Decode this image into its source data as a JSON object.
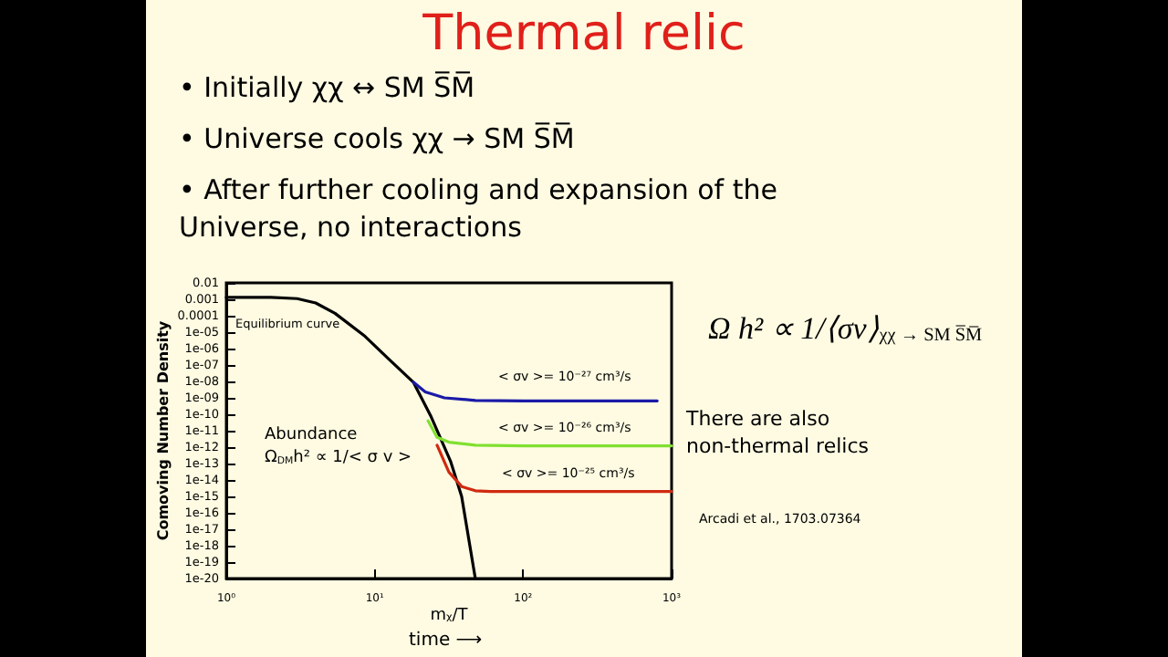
{
  "chart_data": {
    "type": "line",
    "title": "Thermal relic",
    "xlabel": "mᵪ/T",
    "ylabel": "Comoving Number Density",
    "log": "xy",
    "grid": false,
    "marker": "none",
    "line_style": "solid",
    "xlim": [
      1,
      1000
    ],
    "xticks": [
      {
        "value": 1,
        "label": "10⁰"
      },
      {
        "value": 10,
        "label": "10¹"
      },
      {
        "value": 100,
        "label": "10²"
      },
      {
        "value": 1000,
        "label": "10³"
      }
    ],
    "ylim": [
      1e-20,
      0.01
    ],
    "yticks": [
      {
        "value": 0.01,
        "label": "0.01"
      },
      {
        "value": 0.001,
        "label": "0.001"
      },
      {
        "value": 0.0001,
        "label": "0.0001"
      },
      {
        "value": 1e-05,
        "label": "1e-05"
      },
      {
        "value": 1e-06,
        "label": "1e-06"
      },
      {
        "value": 1e-07,
        "label": "1e-07"
      },
      {
        "value": 1e-08,
        "label": "1e-08"
      },
      {
        "value": 1e-09,
        "label": "1e-09"
      },
      {
        "value": 1e-10,
        "label": "1e-10"
      },
      {
        "value": 1e-11,
        "label": "1e-11"
      },
      {
        "value": 1e-12,
        "label": "1e-12"
      },
      {
        "value": 1e-13,
        "label": "1e-13"
      },
      {
        "value": 1e-14,
        "label": "1e-14"
      },
      {
        "value": 1e-15,
        "label": "1e-15"
      },
      {
        "value": 1e-16,
        "label": "1e-16"
      },
      {
        "value": 1e-17,
        "label": "1e-17"
      },
      {
        "value": 1e-18,
        "label": "1e-18"
      },
      {
        "value": 1e-19,
        "label": "1e-19"
      },
      {
        "value": 1e-20,
        "label": "1e-20"
      }
    ],
    "series": [
      {
        "color": "#000000",
        "x": [
          1,
          2,
          3,
          4,
          5.4,
          8.6,
          12.5,
          18.2,
          24,
          32.5,
          38.5,
          47.6
        ],
        "values": [
          0.0013,
          0.0013,
          0.0011,
          0.0006,
          0.00014,
          5.6e-06,
          2.2e-07,
          9e-09,
          7e-11,
          1.3e-13,
          1e-15,
          1e-20
        ]
      },
      {
        "color": "#1a1aa8",
        "x": [
          18.2,
          21.9,
          29.5,
          47.6,
          100,
          300,
          800
        ],
        "values": [
          9e-09,
          2.3e-09,
          1e-09,
          7e-10,
          6.5e-10,
          6.5e-10,
          6.5e-10
        ]
      },
      {
        "color": "#80e030",
        "x": [
          22.9,
          26.3,
          31.6,
          47.6,
          100,
          300,
          1000
        ],
        "values": [
          4e-11,
          4e-12,
          2e-12,
          1.3e-12,
          1.2e-12,
          1.2e-12,
          1.2e-12
        ]
      },
      {
        "color": "#d02a10",
        "x": [
          26.3,
          31.6,
          38.5,
          47.6,
          60,
          100,
          300,
          1000
        ],
        "values": [
          1.3e-12,
          3e-14,
          4e-15,
          2.2e-15,
          2e-15,
          2e-15,
          2e-15,
          2e-15
        ]
      }
    ],
    "annotations": [
      "• Initially χχ ↔ SM S̅M̅",
      "• Universe cools χχ → SM S̅M̅",
      "• After further cooling and expansion of the Universe, no interactions",
      "Ω h² ∝ 1/⟨σv⟩$_{χχ → SM S̅M̅}$",
      "There are also non-thermal relics",
      "Arcadi et al., 1703.07364",
      "Abundance\nΩ$_{DM}$h² ∝ 1/< σ v >",
      "time ⟶",
      "Equilibrium curve",
      "< σv >= 10⁻²⁷ cm³/s",
      "< σv >= 10⁻²⁶ cm³/s",
      "< σv >= 10⁻²⁵ cm³/s"
    ]
  }
}
